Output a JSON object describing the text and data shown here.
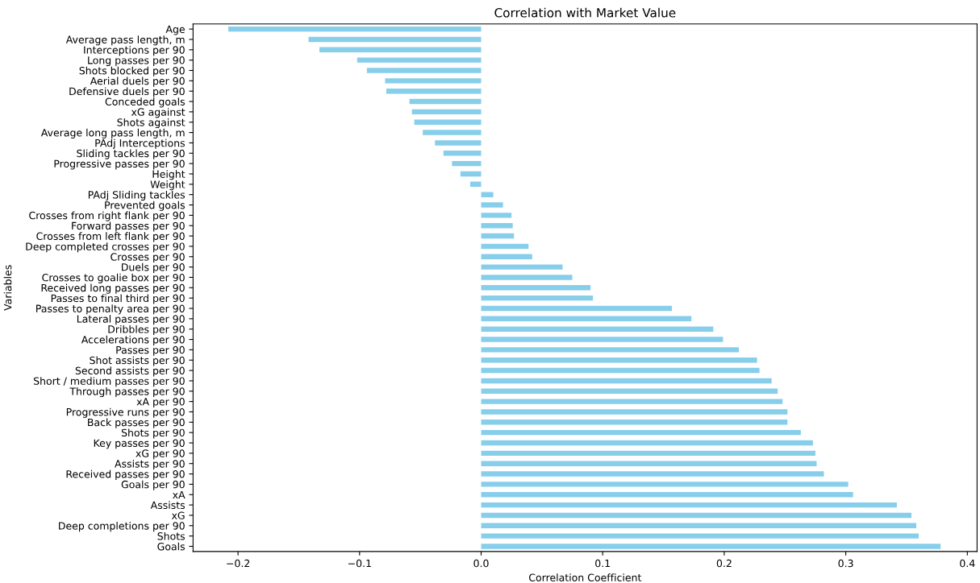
{
  "chart_data": {
    "type": "bar",
    "orientation": "horizontal",
    "title": "Correlation with Market Value",
    "xlabel": "Correlation Coefficient",
    "ylabel": "Variables",
    "color": "#87ceeb",
    "categories": [
      "Age",
      "Average pass length, m",
      "Interceptions per 90",
      "Long passes per 90",
      "Shots blocked per 90",
      "Aerial duels per 90",
      "Defensive duels per 90",
      "Conceded goals",
      "xG against",
      "Shots against",
      "Average long pass length, m",
      "PAdj Interceptions",
      "Sliding tackles per 90",
      "Progressive passes per 90",
      "Height",
      "Weight",
      "PAdj Sliding tackles",
      "Prevented goals",
      "Crosses from right flank per 90",
      "Forward passes per 90",
      "Crosses from left flank per 90",
      "Deep completed crosses per 90",
      "Crosses per 90",
      "Duels per 90",
      "Crosses to goalie box per 90",
      "Received long passes per 90",
      "Passes to final third per 90",
      "Passes to penalty area per 90",
      "Lateral passes per 90",
      "Dribbles per 90",
      "Accelerations per 90",
      "Passes per 90",
      "Shot assists per 90",
      "Second assists per 90",
      "Short / medium passes per 90",
      "Through passes per 90",
      "xA per 90",
      "Progressive runs per 90",
      "Back passes per 90",
      "Shots per 90",
      "Key passes per 90",
      "xG per 90",
      "Assists per 90",
      "Received passes per 90",
      "Goals per 90",
      "xA",
      "Assists",
      "xG",
      "Deep completions per 90",
      "Shots",
      "Goals"
    ],
    "values": [
      -0.208,
      -0.142,
      -0.133,
      -0.102,
      -0.094,
      -0.079,
      -0.078,
      -0.059,
      -0.057,
      -0.055,
      -0.048,
      -0.038,
      -0.031,
      -0.024,
      -0.017,
      -0.009,
      0.01,
      0.018,
      0.025,
      0.026,
      0.027,
      0.039,
      0.042,
      0.067,
      0.075,
      0.09,
      0.092,
      0.157,
      0.173,
      0.191,
      0.199,
      0.212,
      0.227,
      0.229,
      0.239,
      0.244,
      0.248,
      0.252,
      0.252,
      0.263,
      0.273,
      0.275,
      0.276,
      0.282,
      0.302,
      0.306,
      0.342,
      0.354,
      0.358,
      0.36,
      0.378
    ],
    "xlim": [
      -0.237,
      0.408
    ],
    "xticks": [
      {
        "value": -0.2,
        "label": "−0.2"
      },
      {
        "value": -0.1,
        "label": "−0.1"
      },
      {
        "value": 0.0,
        "label": "0.0"
      },
      {
        "value": 0.1,
        "label": "0.1"
      },
      {
        "value": 0.2,
        "label": "0.2"
      },
      {
        "value": 0.3,
        "label": "0.3"
      },
      {
        "value": 0.4,
        "label": "0.4"
      }
    ],
    "grid": false
  }
}
